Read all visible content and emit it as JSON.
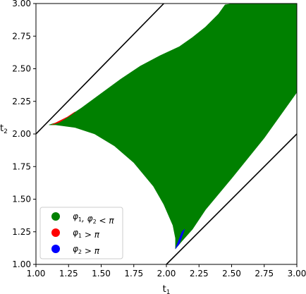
{
  "chart_data": {
    "type": "area",
    "xlabel": "t",
    "xlabel_sub": "1",
    "ylabel": "t",
    "ylabel_sub": "2",
    "xlim": [
      1.0,
      3.0
    ],
    "ylim": [
      1.0,
      3.0
    ],
    "x_ticks": [
      "1.00",
      "1.25",
      "1.50",
      "1.75",
      "2.00",
      "2.25",
      "2.50",
      "2.75",
      "3.00"
    ],
    "y_ticks": [
      "1.00",
      "1.25",
      "1.50",
      "1.75",
      "2.00",
      "2.25",
      "2.50",
      "2.75",
      "3.00"
    ],
    "grid": false,
    "legend_position": "lower-left",
    "lines": [
      {
        "x": [
          1.0,
          1.98
        ],
        "y": [
          2.0,
          3.0
        ],
        "color": "#000000"
      },
      {
        "x": [
          2.0,
          3.0
        ],
        "y": [
          1.0,
          2.0
        ],
        "color": "#000000"
      }
    ],
    "series": [
      {
        "name_parts": [
          {
            "text": "φ",
            "sub": "1"
          },
          {
            "text": ", φ",
            "sub": "2"
          },
          {
            "text": " < π",
            "sub": ""
          }
        ],
        "color": "#008000",
        "region": {
          "x": [
            1.1,
            1.2,
            1.35,
            1.5,
            1.65,
            1.8,
            1.95,
            2.1,
            2.2,
            2.3,
            2.4,
            2.45,
            2.52,
            2.8,
            3.0,
            3.0,
            2.75,
            2.5,
            2.3,
            2.2,
            2.12,
            2.07,
            2.07,
            2.05,
            1.98,
            1.9,
            1.75,
            1.6,
            1.45,
            1.3,
            1.15
          ],
          "y": [
            2.07,
            2.1,
            2.2,
            2.31,
            2.42,
            2.52,
            2.6,
            2.67,
            2.74,
            2.82,
            2.92,
            2.99,
            3.0,
            3.0,
            3.0,
            2.32,
            1.97,
            1.66,
            1.42,
            1.27,
            1.18,
            1.12,
            1.2,
            1.3,
            1.46,
            1.6,
            1.78,
            1.91,
            2.0,
            2.05,
            2.07
          ]
        }
      },
      {
        "name_parts": [
          {
            "text": "φ",
            "sub": "1"
          },
          {
            "text": " > π",
            "sub": ""
          }
        ],
        "color": "#ff0000",
        "region": {
          "x": [
            1.12,
            1.18,
            1.24,
            1.3,
            1.26,
            1.18
          ],
          "y": [
            2.07,
            2.1,
            2.13,
            2.17,
            2.14,
            2.09
          ]
        }
      },
      {
        "name_parts": [
          {
            "text": "φ",
            "sub": "2"
          },
          {
            "text": " > π",
            "sub": ""
          }
        ],
        "color": "#0000ff",
        "region": {
          "x": [
            2.07,
            2.1,
            2.14,
            2.12,
            2.08
          ],
          "y": [
            1.12,
            1.16,
            1.27,
            1.25,
            1.15
          ]
        }
      }
    ]
  }
}
